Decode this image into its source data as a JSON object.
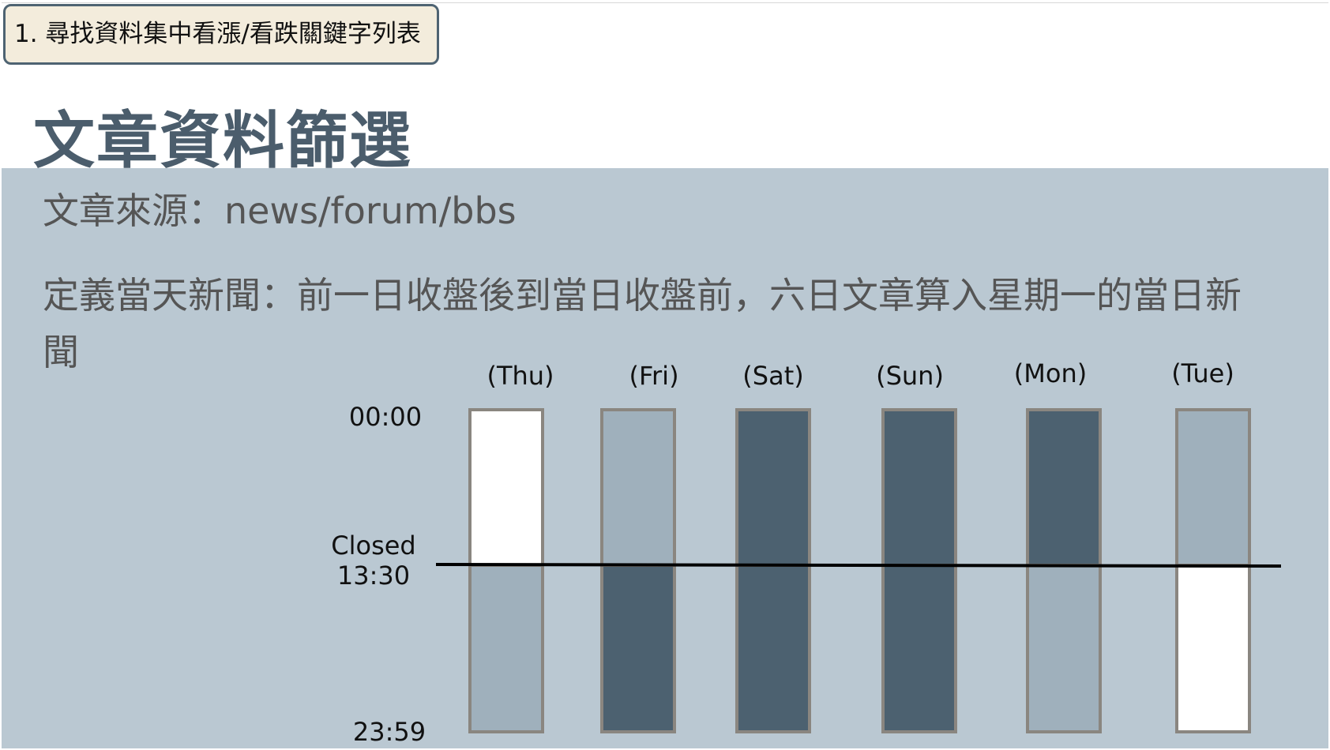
{
  "header": {
    "tag_label": "1. 尋找資料集中看漲/看跌關鍵字列表",
    "title": "文章資料篩選"
  },
  "content": {
    "source_line": "文章來源：news/forum/bbs",
    "definition_line": "定義當天新聞：前一日收盤後到當日收盤前，六日文章算入星期一的當日新聞"
  },
  "diagram": {
    "time_labels": {
      "start": "00:00",
      "closed_line1": "Closed",
      "closed_line2": "13:30",
      "end": "23:59"
    },
    "days": [
      {
        "label": "(Thu)",
        "before_close": "white",
        "after_close": "light"
      },
      {
        "label": "(Fri)",
        "before_close": "light",
        "after_close": "dark"
      },
      {
        "label": "(Sat)",
        "before_close": "dark",
        "after_close": "dark"
      },
      {
        "label": "(Sun)",
        "before_close": "dark",
        "after_close": "dark"
      },
      {
        "label": "(Mon)",
        "before_close": "dark",
        "after_close": "light"
      },
      {
        "label": "(Tue)",
        "before_close": "light",
        "after_close": "white"
      }
    ],
    "colors": {
      "white": "#ffffff",
      "light": "#9fb0bc",
      "dark": "#4c6170",
      "bar_border": "#8a8680",
      "close_line": "#000000"
    }
  }
}
